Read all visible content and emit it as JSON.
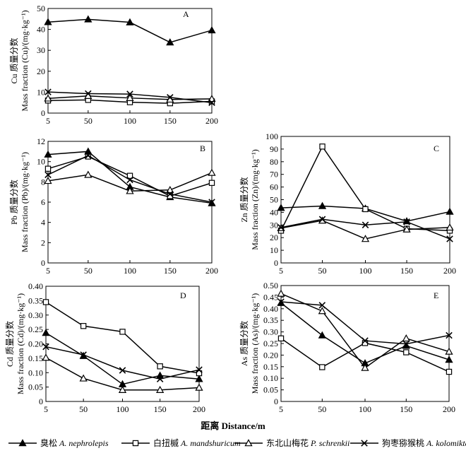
{
  "figure": {
    "x_axis_title": "距离 Distance/m",
    "legend": [
      {
        "cn": "臭松",
        "latin": "A. nephrolepis",
        "marker": "filled-triangle"
      },
      {
        "cn": "白扭槭",
        "latin": "A. mandshuricum",
        "marker": "open-square"
      },
      {
        "cn": "东北山梅花",
        "latin": "P. schrenkii",
        "marker": "open-triangle"
      },
      {
        "cn": "狗枣猕猴桃",
        "latin": "A. kolomikta",
        "marker": "cross"
      }
    ]
  },
  "chart_data": [
    {
      "type": "line",
      "panel": "A",
      "ylabel_cn": "Cu 质量分数",
      "ylabel_en": "Mass fraction (Cu)/(mg·kg⁻¹)",
      "x": [
        5,
        50,
        100,
        150,
        200
      ],
      "xticks": [
        "5",
        "50",
        "100",
        "150",
        "200"
      ],
      "ylim": [
        0,
        50
      ],
      "yticks": [
        "0",
        "10",
        "20",
        "30",
        "40",
        "50"
      ],
      "series": [
        {
          "name": "A. nephrolepis",
          "values": [
            43.5,
            44.8,
            43.4,
            33.8,
            39.6
          ]
        },
        {
          "name": "A. mandshuricum",
          "values": [
            6.0,
            6.3,
            5.2,
            4.7,
            5.6
          ]
        },
        {
          "name": "P. schrenkii",
          "values": [
            7.0,
            8.2,
            7.2,
            6.5,
            6.8
          ]
        },
        {
          "name": "A. kolomikta",
          "values": [
            10.1,
            9.3,
            9.1,
            7.5,
            5.0
          ]
        }
      ]
    },
    {
      "type": "line",
      "panel": "B",
      "ylabel_cn": "Pb 质量分数",
      "ylabel_en": "Mass fraction (Pb)/(mg·kg⁻¹)",
      "x": [
        5,
        50,
        100,
        150,
        200
      ],
      "xticks": [
        "5",
        "50",
        "100",
        "150",
        "200"
      ],
      "ylim": [
        0,
        12
      ],
      "yticks": [
        "0",
        "2",
        "4",
        "6",
        "8",
        "10",
        "12"
      ],
      "series": [
        {
          "name": "A. nephrolepis",
          "values": [
            10.7,
            11.0,
            7.5,
            6.5,
            5.9
          ]
        },
        {
          "name": "A. mandshuricum",
          "values": [
            9.3,
            10.5,
            8.6,
            6.6,
            7.9
          ]
        },
        {
          "name": "P. schrenkii",
          "values": [
            8.1,
            8.7,
            7.1,
            7.2,
            8.9
          ]
        },
        {
          "name": "A. kolomikta",
          "values": [
            8.7,
            10.6,
            8.2,
            6.8,
            6.0
          ]
        }
      ]
    },
    {
      "type": "line",
      "panel": "C",
      "ylabel_cn": "Zn 质量分数",
      "ylabel_en": "Mass fraction (Zn)/(mg·kg⁻¹)",
      "x": [
        5,
        50,
        100,
        150,
        200
      ],
      "xticks": [
        "5",
        "50",
        "100",
        "150",
        "200"
      ],
      "ylim": [
        0,
        100
      ],
      "yticks": [
        "0",
        "10",
        "20",
        "30",
        "40",
        "50",
        "60",
        "70",
        "80",
        "90",
        "100"
      ],
      "series": [
        {
          "name": "A. nephrolepis",
          "values": [
            43.5,
            45.0,
            43.0,
            33.0,
            40.5
          ]
        },
        {
          "name": "A. mandshuricum",
          "values": [
            25.5,
            92.0,
            42.5,
            27.0,
            25.5
          ]
        },
        {
          "name": "P. schrenkii",
          "values": [
            27.5,
            33.5,
            19.0,
            26.5,
            28.0
          ]
        },
        {
          "name": "A. kolomikta",
          "values": [
            28.0,
            34.5,
            30.0,
            32.5,
            19.0
          ]
        }
      ]
    },
    {
      "type": "line",
      "panel": "D",
      "ylabel_cn": "Cd 质量分数",
      "ylabel_en": "Mass fraction (Cd)/(mg·kg⁻¹)",
      "x": [
        5,
        50,
        100,
        150,
        200
      ],
      "xticks": [
        "5",
        "50",
        "100",
        "150",
        "200"
      ],
      "ylim": [
        0,
        0.4
      ],
      "yticks": [
        "0",
        "0.05",
        "0.10",
        "0.15",
        "0.20",
        "0.25",
        "0.30",
        "0.35",
        "0.40"
      ],
      "series": [
        {
          "name": "A. nephrolepis",
          "values": [
            0.238,
            0.158,
            0.06,
            0.09,
            0.078
          ]
        },
        {
          "name": "A. mandshuricum",
          "values": [
            0.345,
            0.262,
            0.242,
            0.122,
            0.098
          ]
        },
        {
          "name": "P. schrenkii",
          "values": [
            0.152,
            0.08,
            0.04,
            0.04,
            0.048
          ]
        },
        {
          "name": "A. kolomikta",
          "values": [
            0.19,
            0.162,
            0.108,
            0.078,
            0.11
          ]
        }
      ]
    },
    {
      "type": "line",
      "panel": "E",
      "ylabel_cn": "As 质量分数",
      "ylabel_en": "Mass fraction (As)/(mg·kg⁻¹)",
      "x": [
        5,
        50,
        100,
        150,
        200
      ],
      "xticks": [
        "5",
        "50",
        "100",
        "150",
        "200"
      ],
      "ylim": [
        0,
        0.5
      ],
      "yticks": [
        "0",
        "0.05",
        "0.10",
        "0.15",
        "0.20",
        "0.25",
        "0.30",
        "0.35",
        "0.40",
        "0.45",
        "0.50"
      ],
      "series": [
        {
          "name": "A. nephrolepis",
          "values": [
            0.425,
            0.285,
            0.165,
            0.24,
            0.18
          ]
        },
        {
          "name": "A. mandshuricum",
          "values": [
            0.272,
            0.148,
            0.252,
            0.212,
            0.128
          ]
        },
        {
          "name": "P. schrenkii",
          "values": [
            0.465,
            0.39,
            0.145,
            0.272,
            0.215
          ]
        },
        {
          "name": "A. kolomikta",
          "values": [
            0.43,
            0.415,
            0.262,
            0.248,
            0.285
          ]
        }
      ]
    }
  ]
}
